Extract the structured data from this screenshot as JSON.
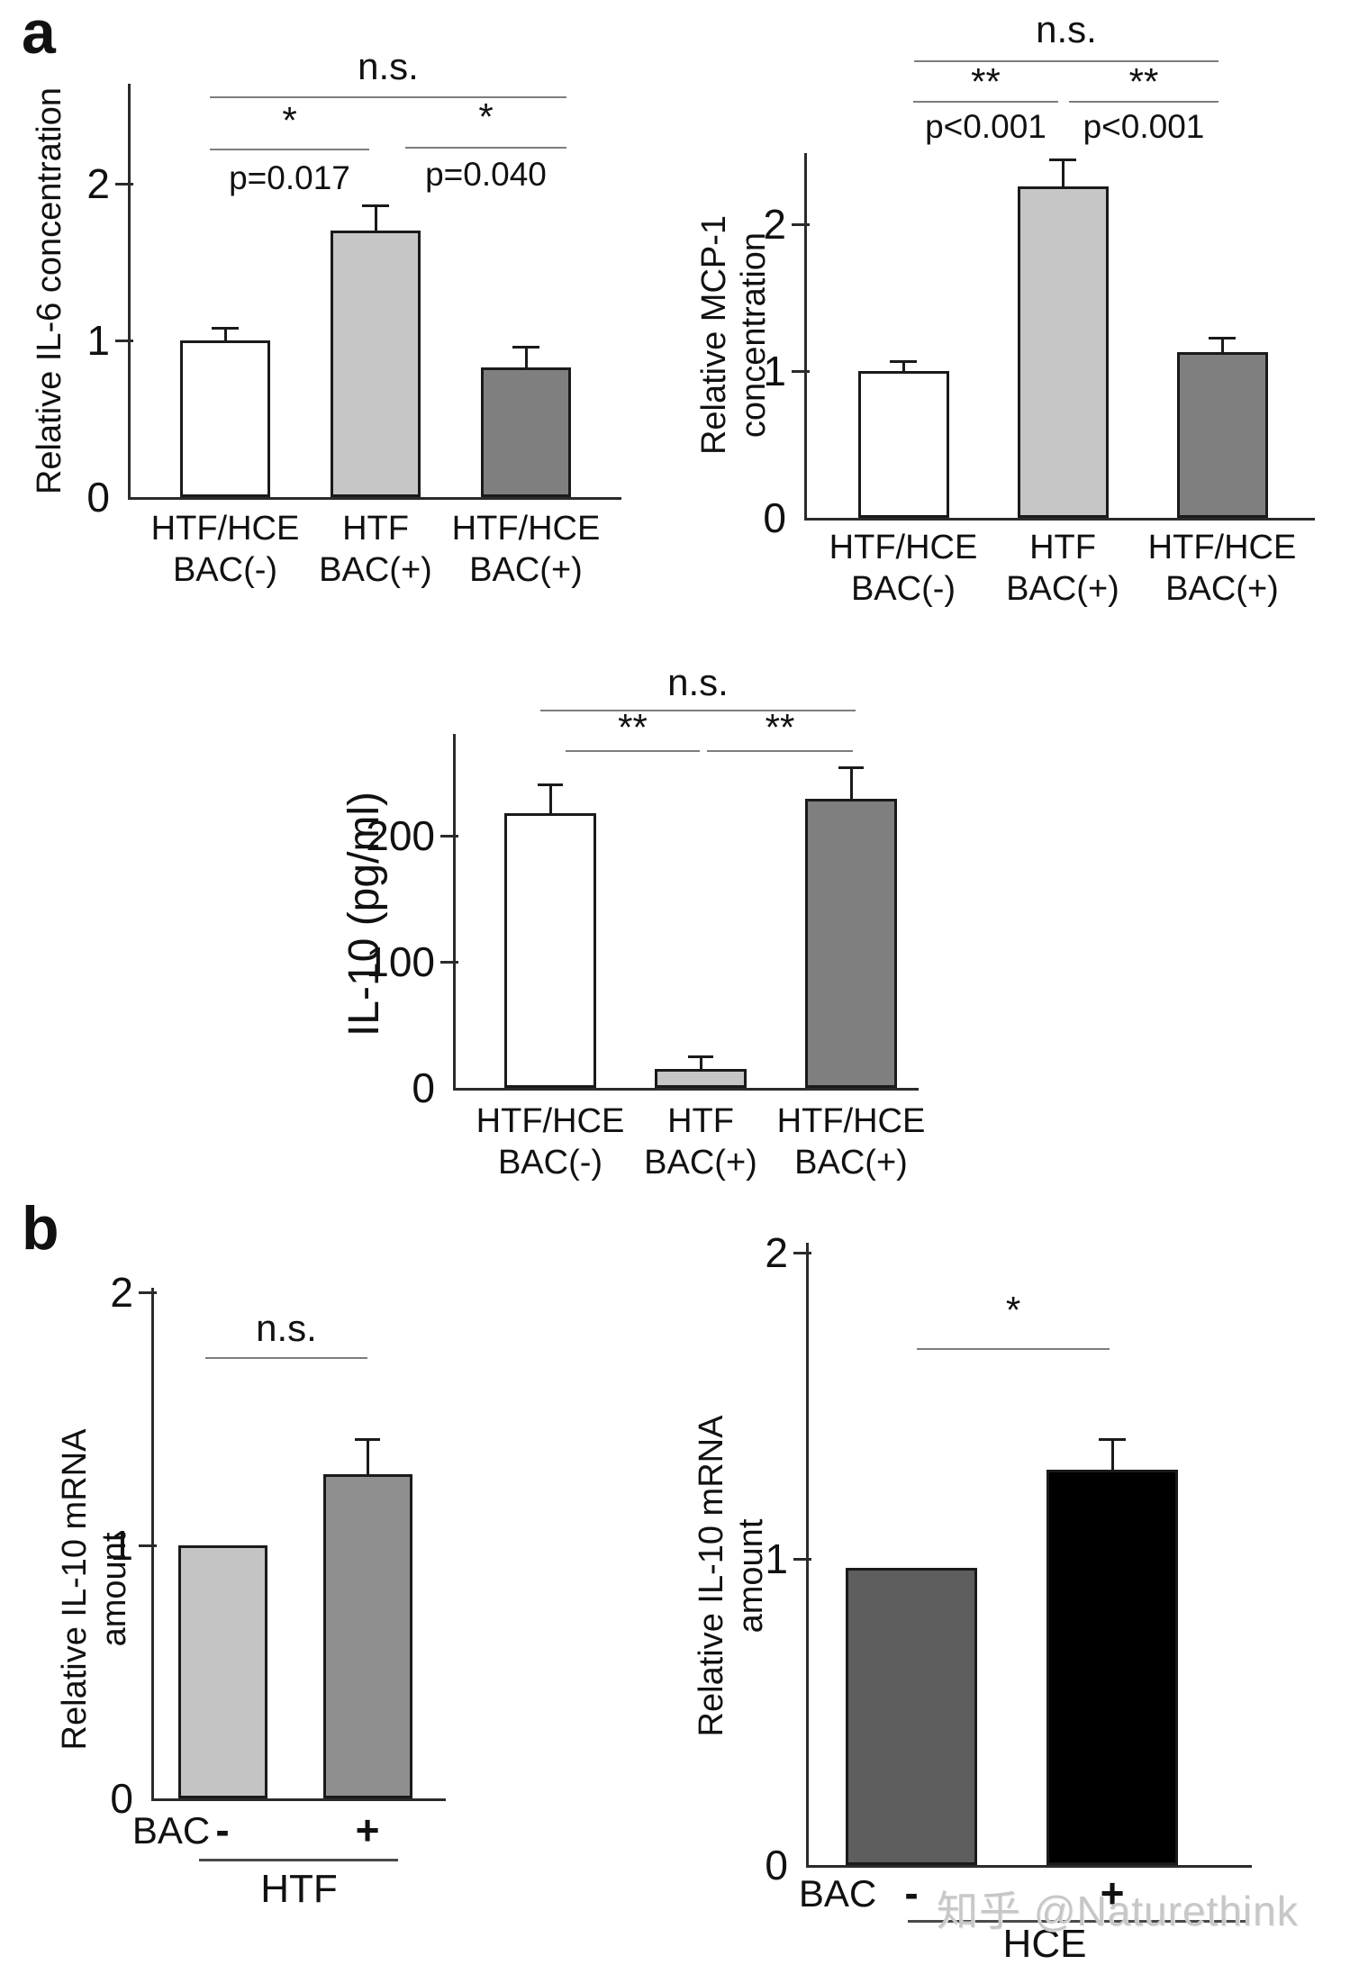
{
  "figure": {
    "panel_a_label": "a",
    "panel_b_label": "b"
  },
  "watermark": {
    "text": "知乎 @Naturethink",
    "color": "#c7c7c7"
  },
  "colors": {
    "axis": "#2b2b2b",
    "bar_border": "#1a1a1a",
    "significance_line": "#7d7d7d",
    "white_bar": "#ffffff",
    "light_gray_bar": "#c6c6c6",
    "mid_gray_bar": "#7f7f7f",
    "dark_gray_bar": "#5e5e5e",
    "black_bar": "#000000"
  },
  "chart_data": [
    {
      "id": "il6",
      "type": "bar",
      "title": "",
      "ylabel_lines": [
        "Relative IL-6  concentration"
      ],
      "xlabel": "",
      "yticks": [
        0,
        1,
        2
      ],
      "ylim": [
        0,
        2.64
      ],
      "grid": false,
      "legend": null,
      "categories": [
        [
          "HTF/HCE",
          "BAC(-)"
        ],
        [
          "HTF",
          "BAC(+)"
        ],
        [
          "HTF/HCE",
          "BAC(+)"
        ]
      ],
      "values": [
        1.0,
        1.7,
        0.83
      ],
      "errors": [
        0.08,
        0.16,
        0.13
      ],
      "bar_colors": [
        "#ffffff",
        "#c6c6c6",
        "#7f7f7f"
      ],
      "significance": [
        {
          "pair": [
            0,
            2
          ],
          "label": "n.s.",
          "sub": ""
        },
        {
          "pair": [
            0,
            1
          ],
          "label": "*",
          "sub": "p=0.017"
        },
        {
          "pair": [
            1,
            2
          ],
          "label": "*",
          "sub": "p=0.040"
        }
      ]
    },
    {
      "id": "mcp1",
      "type": "bar",
      "title": "",
      "ylabel_lines": [
        "Relative MCP-1",
        "concentration"
      ],
      "xlabel": "",
      "yticks": [
        0,
        1,
        2
      ],
      "ylim": [
        0,
        2.48
      ],
      "grid": false,
      "legend": null,
      "categories": [
        [
          "HTF/HCE",
          "BAC(-)"
        ],
        [
          "HTF",
          "BAC(+)"
        ],
        [
          "HTF/HCE",
          "BAC(+)"
        ]
      ],
      "values": [
        1.0,
        2.26,
        1.13
      ],
      "errors": [
        0.07,
        0.18,
        0.1
      ],
      "bar_colors": [
        "#ffffff",
        "#c6c6c6",
        "#7f7f7f"
      ],
      "significance": [
        {
          "pair": [
            0,
            2
          ],
          "label": "n.s.",
          "sub": ""
        },
        {
          "pair": [
            0,
            1
          ],
          "label": "**",
          "sub": "p<0.001"
        },
        {
          "pair": [
            1,
            2
          ],
          "label": "**",
          "sub": "p<0.001"
        }
      ]
    },
    {
      "id": "il10",
      "type": "bar",
      "title": "",
      "ylabel_lines": [
        "IL-10 (pg/ml)"
      ],
      "xlabel": "",
      "yticks": [
        0,
        100,
        200
      ],
      "ylim": [
        0,
        281
      ],
      "grid": false,
      "legend": null,
      "categories": [
        [
          "HTF/HCE",
          "BAC(-)"
        ],
        [
          "HTF",
          "BAC(+)"
        ],
        [
          "HTF/HCE",
          "BAC(+)"
        ]
      ],
      "values": [
        218,
        15,
        229
      ],
      "errors": [
        23,
        10,
        25
      ],
      "bar_colors": [
        "#ffffff",
        "#c6c6c6",
        "#7f7f7f"
      ],
      "significance": [
        {
          "pair": [
            0,
            2
          ],
          "label": "n.s.",
          "sub": ""
        },
        {
          "pair": [
            0,
            1
          ],
          "label": "**",
          "sub": ""
        },
        {
          "pair": [
            1,
            2
          ],
          "label": "**",
          "sub": ""
        }
      ]
    },
    {
      "id": "htf",
      "type": "bar",
      "title": "",
      "ylabel_lines": [
        "Relative  IL-10 mRNA",
        "amount"
      ],
      "xlabel": "",
      "yticks": [
        0,
        1,
        2
      ],
      "ylim": [
        0,
        2.02
      ],
      "grid": false,
      "legend": null,
      "categories": [
        [
          ""
        ],
        [
          ""
        ]
      ],
      "values": [
        1.0,
        1.28
      ],
      "errors": [
        0,
        0.14
      ],
      "bar_colors": [
        "#c4c4c4",
        "#8f8f8f"
      ],
      "significance": [
        {
          "pair": [
            0,
            1
          ],
          "label": "n.s.",
          "sub": ""
        }
      ],
      "bac_row": {
        "prefix": "BAC",
        "signs": [
          "-",
          "+"
        ],
        "group": "HTF"
      }
    },
    {
      "id": "hce",
      "type": "bar",
      "title": "",
      "ylabel_lines": [
        "Relative  IL-10 mRNA",
        "amount"
      ],
      "xlabel": "",
      "yticks": [
        0,
        1,
        2
      ],
      "ylim": [
        0,
        2.03
      ],
      "grid": false,
      "legend": null,
      "categories": [
        [
          ""
        ],
        [
          ""
        ]
      ],
      "values": [
        0.97,
        1.29
      ],
      "errors": [
        0,
        0.1
      ],
      "bar_colors": [
        "#5e5e5e",
        "#000000"
      ],
      "significance": [
        {
          "pair": [
            0,
            1
          ],
          "label": "*",
          "sub": ""
        }
      ],
      "bac_row": {
        "prefix": "BAC",
        "signs": [
          "-",
          "+"
        ],
        "group": "HCE"
      }
    }
  ]
}
